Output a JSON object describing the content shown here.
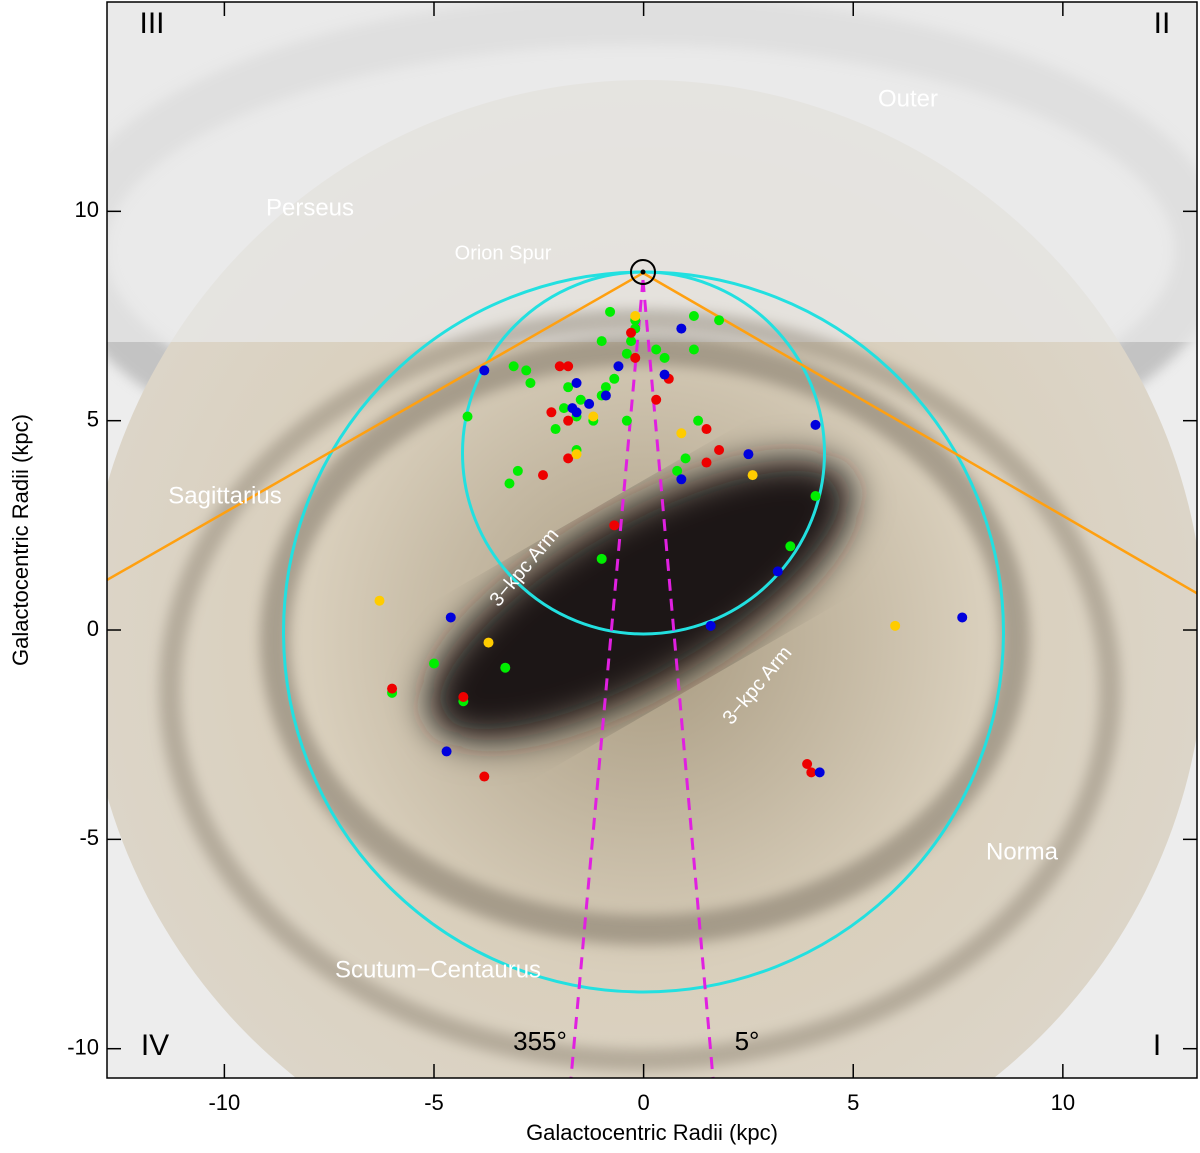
{
  "chart_data": {
    "type": "scatter",
    "xlabel": "Galactocentric Radii (kpc)",
    "ylabel": "Galactocentric Radii (kpc)",
    "xlim": [
      -12.8,
      13.2
    ],
    "ylim": [
      -10.7,
      15
    ],
    "xticks": [
      -10,
      -5,
      0,
      5,
      10
    ],
    "yticks": [
      -10,
      -5,
      0,
      5,
      10
    ],
    "annotations": [
      "III",
      "II",
      "IV",
      "I",
      "Outer",
      "Perseus",
      "Orion Spur",
      "Sagittarius",
      "3−kpc Arm",
      "3−kpc Arm",
      "Norma",
      "Scutum−Centaurus",
      "355°",
      "5°"
    ],
    "series": [
      {
        "color": "#00ee00",
        "x": [
          -0.8,
          -0.2,
          1.2,
          1.8,
          -0.2,
          -1.0,
          -0.3,
          0.3,
          -0.4,
          1.2,
          0.5,
          -3.1,
          -2.8,
          -2.7,
          -0.7,
          -1.8,
          -0.9,
          -1.0,
          -1.5,
          -1.9,
          -1.6,
          -1.2,
          -4.2,
          -0.4,
          1.3,
          -2.1,
          -1.6,
          1.0,
          -3.0,
          -3.2,
          0.8,
          4.1,
          3.5,
          -1.0,
          -3.3,
          -5.0,
          -6.0,
          -4.3
        ],
        "values": [
          7.6,
          7.4,
          7.5,
          7.4,
          7.2,
          6.9,
          6.9,
          6.7,
          6.6,
          6.7,
          6.5,
          6.3,
          6.2,
          5.9,
          6.0,
          5.8,
          5.8,
          5.6,
          5.5,
          5.3,
          5.1,
          5.0,
          5.1,
          5.0,
          5.0,
          4.8,
          4.3,
          4.1,
          3.8,
          3.5,
          3.8,
          3.2,
          2.0,
          1.7,
          -0.9,
          -0.8,
          -1.5,
          -1.7
        ]
      },
      {
        "color": "#ee0000",
        "x": [
          -2.0,
          -1.8,
          -0.3,
          -0.2,
          0.6,
          0.3,
          -2.2,
          -1.8,
          1.5,
          -1.8,
          -2.4,
          1.8,
          1.5,
          -0.7,
          -6.0,
          -4.3,
          -3.8,
          3.9,
          4.0
        ],
        "values": [
          6.3,
          6.3,
          7.1,
          6.5,
          6.0,
          5.5,
          5.2,
          5.0,
          4.8,
          4.1,
          3.7,
          4.3,
          4.0,
          2.5,
          -1.4,
          -1.6,
          -3.5,
          -3.2,
          -3.4
        ]
      },
      {
        "color": "#0000dd",
        "x": [
          -3.8,
          -1.6,
          0.9,
          0.5,
          -0.6,
          -0.9,
          -1.3,
          -1.7,
          -1.6,
          4.1,
          2.5,
          0.9,
          3.2,
          -4.6,
          1.6,
          7.6,
          -4.7,
          4.2
        ],
        "values": [
          6.2,
          5.9,
          7.2,
          6.1,
          6.3,
          5.6,
          5.4,
          5.3,
          5.2,
          4.9,
          4.2,
          3.6,
          1.4,
          0.3,
          0.1,
          0.3,
          -2.9,
          -3.4
        ]
      },
      {
        "color": "#ffcc00",
        "x": [
          -0.2,
          -1.2,
          -1.6,
          0.9,
          2.6,
          -6.3,
          -3.7,
          6.0
        ],
        "values": [
          7.5,
          5.1,
          4.2,
          4.7,
          3.7,
          0.7,
          -0.3,
          0.1
        ]
      }
    ]
  }
}
